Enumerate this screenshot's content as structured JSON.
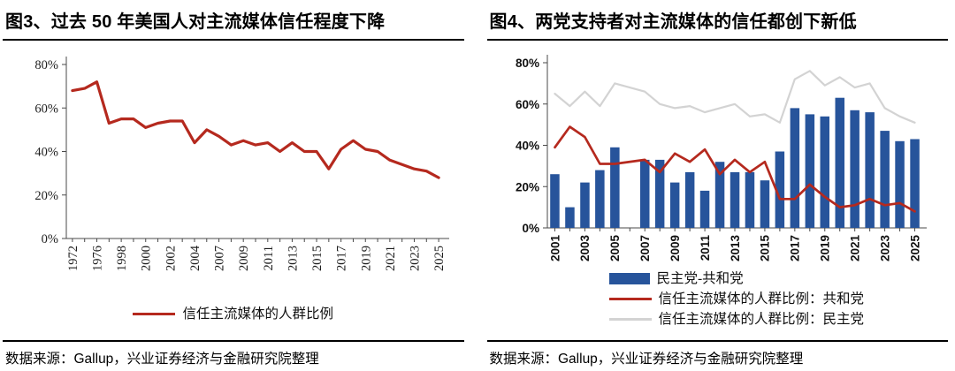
{
  "colors": {
    "line_red": "#B5291E",
    "bar_blue": "#27549B",
    "line_grey": "#D3D3D3",
    "axis": "#4a4a4a",
    "rule": "#000000"
  },
  "figure3": {
    "title": "图3、过去 50 年美国人对主流媒体信任程度下降",
    "source": "数据来源：Gallup，兴业证券经济与金融研究院整理",
    "legend": [
      {
        "label": "信任主流媒体的人群比例",
        "swatch": "red-line"
      }
    ],
    "chart_data": {
      "type": "line",
      "title": "过去 50 年美国人对主流媒体信任程度下降",
      "categories": [
        "1972",
        "1974",
        "1976",
        "1997",
        "1998",
        "1999",
        "2000",
        "2001",
        "2002",
        "2003",
        "2004",
        "2005",
        "2007",
        "2008",
        "2009",
        "2010",
        "2011",
        "2012",
        "2013",
        "2014",
        "2015",
        "2016",
        "2017",
        "2018",
        "2019",
        "2020",
        "2021",
        "2022",
        "2023",
        "2024",
        "2025"
      ],
      "series": [
        {
          "name": "信任主流媒体的人群比例",
          "type": "line",
          "color_key": "line_red",
          "values": [
            68,
            69,
            72,
            53,
            55,
            55,
            51,
            53,
            54,
            54,
            44,
            50,
            47,
            43,
            45,
            43,
            44,
            40,
            44,
            40,
            40,
            32,
            41,
            45,
            41,
            40,
            36,
            34,
            32,
            31,
            28
          ]
        }
      ],
      "ylim": [
        0,
        80
      ],
      "yticks": [
        0,
        20,
        40,
        60,
        80
      ],
      "ytick_suffix": "%",
      "x_label_every": 2,
      "grid": false,
      "legend_position": "bottom-center"
    }
  },
  "figure4": {
    "title": "图4、两党支持者对主流媒体的信任都创下新低",
    "source": "数据来源：Gallup，兴业证券经济与金融研究院整理",
    "legend": [
      {
        "label": "民主党-共和党",
        "swatch": "blue-bar"
      },
      {
        "label": "信任主流媒体的人群比例：共和党",
        "swatch": "red-line"
      },
      {
        "label": "信任主流媒体的人群比例：民主党",
        "swatch": "grey-line"
      }
    ],
    "chart_data": {
      "type": "bar+line",
      "title": "两党支持者对主流媒体的信任都创下新低",
      "categories": [
        "2001",
        "2002",
        "2003",
        "2004",
        "2005",
        "2006",
        "2007",
        "2008",
        "2009",
        "2010",
        "2011",
        "2012",
        "2013",
        "2014",
        "2015",
        "2016",
        "2017",
        "2018",
        "2019",
        "2020",
        "2021",
        "2022",
        "2023",
        "2024",
        "2025"
      ],
      "series": [
        {
          "name": "民主党-共和党",
          "type": "bar",
          "color_key": "bar_blue",
          "values": [
            26,
            10,
            22,
            28,
            39,
            null,
            33,
            33,
            22,
            27,
            18,
            32,
            27,
            27,
            23,
            37,
            58,
            55,
            54,
            63,
            57,
            56,
            47,
            42,
            43
          ]
        },
        {
          "name": "信任主流媒体的人群比例：民主党",
          "type": "line",
          "color_key": "line_grey",
          "values": [
            65,
            59,
            66,
            59,
            70,
            null,
            66,
            60,
            58,
            59,
            56,
            58,
            60,
            54,
            55,
            51,
            72,
            76,
            69,
            73,
            68,
            70,
            58,
            54,
            51
          ]
        },
        {
          "name": "信任主流媒体的人群比例：共和党",
          "type": "line",
          "color_key": "line_red",
          "values": [
            39,
            49,
            44,
            31,
            31,
            null,
            33,
            27,
            36,
            32,
            38,
            26,
            33,
            27,
            32,
            14,
            14,
            21,
            15,
            10,
            11,
            14,
            11,
            12,
            8
          ]
        }
      ],
      "ylim": [
        0,
        80
      ],
      "yticks": [
        0,
        20,
        40,
        60,
        80
      ],
      "ytick_suffix": "%",
      "x_label_every": 2,
      "grid": false,
      "legend_position": "bottom"
    }
  }
}
